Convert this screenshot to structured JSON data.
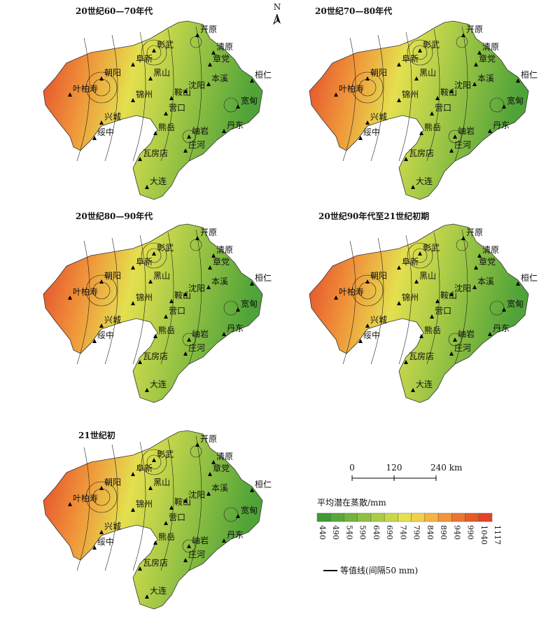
{
  "north": "N",
  "panels": [
    {
      "title": "20世纪60—70年代"
    },
    {
      "title": "20世纪70—80年代"
    },
    {
      "title": "20世纪80—90年代"
    },
    {
      "title": "20世纪90年代至21世纪初期"
    },
    {
      "title": "21世纪初"
    }
  ],
  "cities": [
    {
      "name": "叶柏寿"
    },
    {
      "name": "朝阳"
    },
    {
      "name": "阜新"
    },
    {
      "name": "彰武"
    },
    {
      "name": "开原"
    },
    {
      "name": "清原"
    },
    {
      "name": "章党"
    },
    {
      "name": "黑山"
    },
    {
      "name": "锦州"
    },
    {
      "name": "鞍山"
    },
    {
      "name": "沈阳"
    },
    {
      "name": "本溪"
    },
    {
      "name": "桓仁"
    },
    {
      "name": "宽甸"
    },
    {
      "name": "营口"
    },
    {
      "name": "兴城"
    },
    {
      "name": "绥中"
    },
    {
      "name": "熊岳"
    },
    {
      "name": "岫岩"
    },
    {
      "name": "丹东"
    },
    {
      "name": "瓦房店"
    },
    {
      "name": "庄河"
    },
    {
      "name": "大连"
    }
  ],
  "scale_bar": {
    "labels": [
      "0",
      "120",
      "240 km"
    ]
  },
  "legend": {
    "title": "平均潜在蒸散/mm",
    "breaks": [
      "440",
      "490",
      "540",
      "590",
      "640",
      "690",
      "740",
      "790",
      "840",
      "890",
      "940",
      "990",
      "1040",
      "1117"
    ],
    "colors": [
      "#3f9a35",
      "#58a83a",
      "#72b43e",
      "#8fc043",
      "#abcc47",
      "#c8d84b",
      "#e4e04f",
      "#f3d04a",
      "#f4b442",
      "#f0963a",
      "#eb7631",
      "#e65a29",
      "#e2432a"
    ]
  },
  "isoline_label": "等值线(间隔50 mm)"
}
